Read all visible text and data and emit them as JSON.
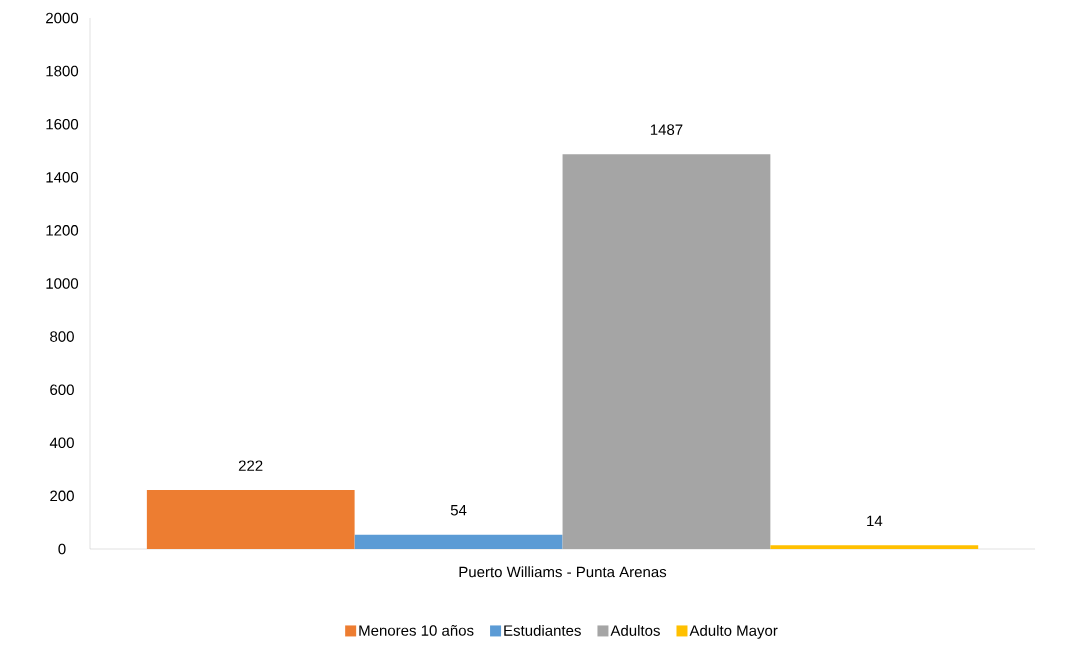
{
  "chart_data": {
    "type": "bar",
    "categories": [
      "Puerto Williams - Punta Arenas"
    ],
    "series": [
      {
        "name": "Menores 10 años",
        "color": "#ed7d31",
        "values": [
          222
        ]
      },
      {
        "name": "Estudiantes",
        "color": "#5b9bd5",
        "values": [
          54
        ]
      },
      {
        "name": "Adultos",
        "color": "#a5a5a5",
        "values": [
          1487
        ]
      },
      {
        "name": "Adulto Mayor",
        "color": "#ffc000",
        "values": [
          14
        ]
      }
    ],
    "ylim": [
      0,
      2000
    ],
    "yticks": [
      0,
      200,
      400,
      600,
      800,
      1000,
      1200,
      1400,
      1600,
      1800,
      2000
    ],
    "grid": false,
    "legend": "bottom",
    "data_labels": true
  }
}
